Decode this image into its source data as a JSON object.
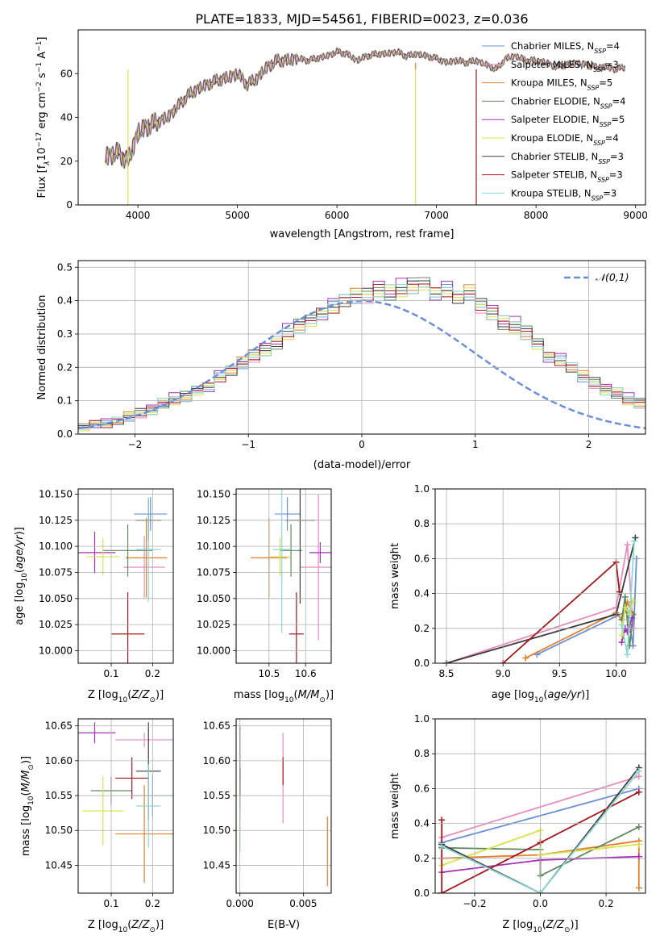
{
  "figure": {
    "title": "PLATE=1833, MJD=54561, FIBERID=0023, z=0.036"
  },
  "models": [
    {
      "name": "Chabrier MILES",
      "nssp": "4",
      "color": "#6a8fd8"
    },
    {
      "name": "Salpeter MILES",
      "nssp": "3",
      "color": "#e88bbf"
    },
    {
      "name": "Kroupa MILES",
      "nssp": "5",
      "color": "#e07f2c"
    },
    {
      "name": "Chabrier ELODIE",
      "nssp": "4",
      "color": "#5f8a5f"
    },
    {
      "name": "Salpeter ELODIE",
      "nssp": "5",
      "color": "#a52fb5"
    },
    {
      "name": "Kroupa ELODIE",
      "nssp": "4",
      "color": "#d7e34a"
    },
    {
      "name": "Chabrier STELIB",
      "nssp": "3",
      "color": "#3c3c3c"
    },
    {
      "name": "Salpeter STELIB",
      "nssp": "3",
      "color": "#a3181f"
    },
    {
      "name": "Kroupa STELIB",
      "nssp": "3",
      "color": "#8cd8d4"
    }
  ],
  "chart_data": [
    {
      "id": "spectrum",
      "type": "line",
      "xlabel": "wavelength [Angstrom, rest frame]",
      "ylabel": "Flux [f",
      "xlim": [
        3400,
        9100
      ],
      "ylim": [
        0,
        80
      ],
      "xticks": [
        4000,
        5000,
        6000,
        7000,
        8000,
        9000
      ],
      "yticks": [
        0,
        20,
        40,
        60
      ],
      "legend": "right",
      "x": [
        3670,
        3800,
        3900,
        4000,
        4100,
        4200,
        4300,
        4400,
        4500,
        4600,
        4700,
        4800,
        4900,
        5000,
        5100,
        5200,
        5300,
        5400,
        5500,
        5600,
        5700,
        5800,
        5900,
        6000,
        6100,
        6200,
        6300,
        6400,
        6500,
        6600,
        6700,
        6800,
        6900,
        7000,
        7100,
        7200,
        7300,
        7400,
        7500,
        7600,
        7700,
        7800,
        7900,
        8000,
        8100,
        8200,
        8300,
        8400,
        8500,
        8600,
        8700,
        8800,
        8900
      ],
      "y": [
        22,
        24,
        20,
        33,
        36,
        38,
        40,
        45,
        50,
        53,
        55,
        57,
        58,
        60,
        55,
        58,
        63,
        66,
        66,
        67,
        66,
        67,
        68,
        70,
        69,
        66,
        68,
        69,
        69,
        70,
        68,
        69,
        68,
        67,
        65,
        66,
        65,
        66,
        64,
        62,
        67,
        68,
        66,
        66,
        65,
        63,
        64,
        65,
        64,
        63,
        63,
        62,
        63
      ],
      "dips": [
        {
          "model": 5,
          "x": 3900,
          "y": 0
        },
        {
          "model": 5,
          "x": 6790,
          "y": 0
        },
        {
          "model": 2,
          "x": 6790,
          "y": 65
        },
        {
          "model": 7,
          "x": 7400,
          "y": 0
        }
      ]
    },
    {
      "id": "residuals",
      "type": "line",
      "xlabel": "(data-model)/error",
      "ylabel": "Normed distribution",
      "xlim": [
        -2.5,
        2.5
      ],
      "ylim": [
        0,
        0.52
      ],
      "xticks": [
        -2,
        -1,
        0,
        1,
        2
      ],
      "yticks": [
        0.0,
        0.1,
        0.2,
        0.3,
        0.4,
        0.5
      ],
      "legend": "top-right",
      "reference": {
        "name": "𝒩(0,1)",
        "color": "#6a8fd8",
        "mean": 0,
        "sigma": 1
      },
      "bin_width": 0.1,
      "bin_start": -2.5,
      "counts": [
        0.02,
        0.03,
        0.03,
        0.04,
        0.05,
        0.06,
        0.07,
        0.09,
        0.1,
        0.11,
        0.13,
        0.14,
        0.17,
        0.19,
        0.21,
        0.23,
        0.25,
        0.27,
        0.3,
        0.32,
        0.34,
        0.36,
        0.38,
        0.4,
        0.41,
        0.41,
        0.43,
        0.42,
        0.43,
        0.44,
        0.45,
        0.42,
        0.43,
        0.41,
        0.42,
        0.38,
        0.36,
        0.33,
        0.32,
        0.3,
        0.27,
        0.23,
        0.22,
        0.2,
        0.17,
        0.15,
        0.13,
        0.12,
        0.1,
        0.09,
        0.08,
        0.06,
        0.05,
        0.05,
        0.04,
        0.03,
        0.03,
        0.03,
        0.02,
        0.02
      ],
      "offsets": [
        [
          0.01,
          -0.01,
          0.02,
          0.0,
          -0.02,
          0.01,
          0.02,
          -0.01,
          0.0,
          0.02
        ],
        [
          0.0,
          0.01,
          -0.01,
          0.02,
          0.01,
          -0.02,
          0.0,
          0.03,
          -0.01,
          0.01
        ],
        [
          -0.01,
          0.02,
          0.0,
          -0.01,
          0.03,
          0.0,
          -0.02,
          0.01,
          0.02,
          -0.01
        ],
        [
          0.02,
          0.0,
          0.01,
          0.02,
          -0.01,
          0.02,
          0.01,
          -0.02,
          0.0,
          0.03
        ],
        [
          0.0,
          -0.02,
          0.03,
          0.01,
          0.0,
          -0.01,
          0.03,
          0.0,
          0.04,
          -0.02
        ],
        [
          -0.02,
          0.01,
          -0.01,
          0.0,
          0.02,
          0.01,
          -0.01,
          0.02,
          -0.02,
          0.0
        ],
        [
          0.01,
          0.0,
          0.0,
          -0.02,
          0.01,
          0.03,
          0.0,
          -0.01,
          0.01,
          0.02
        ],
        [
          0.0,
          0.02,
          -0.02,
          0.01,
          0.0,
          -0.01,
          0.02,
          0.01,
          -0.01,
          0.01
        ],
        [
          -0.01,
          -0.01,
          0.01,
          0.02,
          -0.01,
          0.0,
          -0.02,
          0.03,
          0.02,
          -0.02
        ]
      ]
    },
    {
      "id": "age-vs-Z",
      "type": "scatter",
      "xlabel": "Z [log",
      "ylabel": "age  [log",
      "xlim": [
        0.02,
        0.25
      ],
      "ylim": [
        9.988,
        10.155
      ],
      "xticks": [
        "0.1",
        "0.2"
      ],
      "xtick_values": [
        0.1,
        0.2
      ],
      "yticks": [
        "10.000",
        "10.025",
        "10.050",
        "10.075",
        "10.100",
        "10.125",
        "10.150"
      ],
      "ytick_values": [
        10.0,
        10.025,
        10.05,
        10.075,
        10.1,
        10.125,
        10.15
      ],
      "points": [
        {
          "model": 0,
          "x": 0.195,
          "xerr": 0.04,
          "y": 10.131,
          "yerr": 0.016
        },
        {
          "model": 1,
          "x": 0.18,
          "xerr": 0.05,
          "y": 10.08,
          "yerr": 0.03
        },
        {
          "model": 2,
          "x": 0.185,
          "xerr": 0.05,
          "y": 10.089,
          "yerr": 0.038
        },
        {
          "model": 3,
          "x": 0.14,
          "xerr": 0.06,
          "y": 10.096,
          "yerr": 0.025
        },
        {
          "model": 4,
          "x": 0.06,
          "xerr": 0.05,
          "y": 10.094,
          "yerr": 0.02
        },
        {
          "model": 5,
          "x": 0.08,
          "xerr": 0.04,
          "y": 10.09,
          "yerr": 0.018
        },
        {
          "model": 6,
          "x": 0.19,
          "xerr": 0.03,
          "y": 10.125,
          "yerr": 0.02
        },
        {
          "model": 7,
          "x": 0.14,
          "xerr": 0.04,
          "y": 10.016,
          "yerr": 0.04
        },
        {
          "model": 8,
          "x": 0.19,
          "xerr": 0.03,
          "y": 10.097,
          "yerr": 0.05
        }
      ]
    },
    {
      "id": "age-vs-mass",
      "type": "scatter",
      "xlabel": "mass [log",
      "ylabel": "",
      "xlim": [
        10.41,
        10.67
      ],
      "ylim": [
        9.988,
        10.155
      ],
      "xticks": [
        "10.5",
        "10.6"
      ],
      "xtick_values": [
        10.5,
        10.6
      ],
      "yticks": [
        "10.000",
        "10.025",
        "10.050",
        "10.075",
        "10.100",
        "10.125",
        "10.150"
      ],
      "ytick_values": [
        10.0,
        10.025,
        10.05,
        10.075,
        10.1,
        10.125,
        10.15
      ],
      "points": [
        {
          "model": 0,
          "x": 10.55,
          "xerr": 0.035,
          "y": 10.131,
          "yerr": 0.016
        },
        {
          "model": 1,
          "x": 10.635,
          "xerr": 0.05,
          "y": 10.08,
          "yerr": 0.07
        },
        {
          "model": 2,
          "x": 10.5,
          "xerr": 0.05,
          "y": 10.089,
          "yerr": 0.038
        },
        {
          "model": 3,
          "x": 10.56,
          "xerr": 0.03,
          "y": 10.096,
          "yerr": 0.025
        },
        {
          "model": 4,
          "x": 10.64,
          "xerr": 0.03,
          "y": 10.094,
          "yerr": 0.01
        },
        {
          "model": 5,
          "x": 10.53,
          "xerr": 0.03,
          "y": 10.09,
          "yerr": 0.018
        },
        {
          "model": 6,
          "x": 10.585,
          "xerr": 0.04,
          "y": 10.125,
          "yerr": 0.08
        },
        {
          "model": 7,
          "x": 10.575,
          "xerr": 0.02,
          "y": 10.016,
          "yerr": 0.04
        },
        {
          "model": 8,
          "x": 10.535,
          "xerr": 0.025,
          "y": 10.097,
          "yerr": 0.08
        }
      ]
    },
    {
      "id": "mass-weight-vs-age",
      "type": "line",
      "xlabel": "age  [log",
      "ylabel": "mass weight",
      "xlim": [
        8.4,
        10.26
      ],
      "ylim": [
        0,
        1
      ],
      "xticks": [
        "8.5",
        "9.0",
        "9.5",
        "10.0"
      ],
      "xtick_values": [
        8.5,
        9.0,
        9.5,
        10.0
      ],
      "yticks": [
        "0.0",
        "0.2",
        "0.4",
        "0.6",
        "0.8",
        "1.0"
      ],
      "ytick_values": [
        0,
        0.2,
        0.4,
        0.6,
        0.8,
        1.0
      ],
      "series": [
        {
          "model": 0,
          "x": [
            9.3,
            10.1,
            10.15,
            10.18
          ],
          "y": [
            0.05,
            0.3,
            0.1,
            0.6
          ]
        },
        {
          "model": 1,
          "x": [
            8.5,
            10.0,
            10.1,
            10.15
          ],
          "y": [
            0.0,
            0.32,
            0.68,
            0.2
          ]
        },
        {
          "model": 2,
          "x": [
            9.2,
            10.0,
            10.05,
            10.1,
            10.15
          ],
          "y": [
            0.03,
            0.29,
            0.25,
            0.35,
            0.28
          ]
        },
        {
          "model": 3,
          "x": [
            10.05,
            10.08,
            10.12,
            10.15
          ],
          "y": [
            0.25,
            0.38,
            0.1,
            0.28
          ]
        },
        {
          "model": 4,
          "x": [
            10.05,
            10.08,
            10.1,
            10.12,
            10.14
          ],
          "y": [
            0.12,
            0.2,
            0.18,
            0.22,
            0.26
          ]
        },
        {
          "model": 5,
          "x": [
            10.05,
            10.08,
            10.12,
            10.15
          ],
          "y": [
            0.16,
            0.32,
            0.28,
            0.36
          ]
        },
        {
          "model": 6,
          "x": [
            8.5,
            10.0,
            10.17
          ],
          "y": [
            0.0,
            0.28,
            0.72
          ]
        },
        {
          "model": 7,
          "x": [
            9.0,
            10.0,
            10.03
          ],
          "y": [
            0.0,
            0.58,
            0.41
          ]
        },
        {
          "model": 8,
          "x": [
            10.05,
            10.1,
            10.16
          ],
          "y": [
            0.22,
            0.05,
            0.7
          ]
        }
      ]
    },
    {
      "id": "mass-vs-Z",
      "type": "scatter",
      "xlabel": "Z [log",
      "ylabel": "mass [log",
      "xlim": [
        0.02,
        0.25
      ],
      "ylim": [
        10.41,
        10.66
      ],
      "xticks": [
        "0.1",
        "0.2"
      ],
      "xtick_values": [
        0.1,
        0.2
      ],
      "yticks": [
        "10.45",
        "10.50",
        "10.55",
        "10.60",
        "10.65"
      ],
      "ytick_values": [
        10.45,
        10.5,
        10.55,
        10.6,
        10.65
      ],
      "points": [
        {
          "model": 0,
          "x": 0.2,
          "xerr": 0.05,
          "y": 10.55,
          "yerr": 0.03
        },
        {
          "model": 1,
          "x": 0.18,
          "xerr": 0.07,
          "y": 10.63,
          "yerr": 0.01
        },
        {
          "model": 2,
          "x": 0.18,
          "xerr": 0.07,
          "y": 10.495,
          "yerr": 0.07
        },
        {
          "model": 3,
          "x": 0.1,
          "xerr": 0.05,
          "y": 10.557,
          "yerr": 0.02
        },
        {
          "model": 4,
          "x": 0.06,
          "xerr": 0.05,
          "y": 10.64,
          "yerr": 0.015
        },
        {
          "model": 5,
          "x": 0.08,
          "xerr": 0.05,
          "y": 10.528,
          "yerr": 0.05
        },
        {
          "model": 6,
          "x": 0.19,
          "xerr": 0.03,
          "y": 10.585,
          "yerr": 0.07
        },
        {
          "model": 7,
          "x": 0.15,
          "xerr": 0.04,
          "y": 10.575,
          "yerr": 0.03
        },
        {
          "model": 8,
          "x": 0.19,
          "xerr": 0.03,
          "y": 10.535,
          "yerr": 0.06
        }
      ]
    },
    {
      "id": "mass-vs-EBV",
      "type": "scatter",
      "xlabel": "E(B-V)",
      "ylabel": "",
      "xlim": [
        -0.0003,
        0.0072
      ],
      "ylim": [
        10.41,
        10.66
      ],
      "xticks": [
        "0.000",
        "0.005"
      ],
      "xtick_values": [
        0.0,
        0.005
      ],
      "yticks": [
        "10.45",
        "10.50",
        "10.55",
        "10.60",
        "10.65"
      ],
      "ytick_values": [
        10.45,
        10.5,
        10.55,
        10.6,
        10.65
      ],
      "points": [
        {
          "model": 0,
          "x": 0.0,
          "xerr": 0,
          "y": 10.55,
          "yerr": 0.03
        },
        {
          "model": 1,
          "x": 0.0034,
          "xerr": 0,
          "y": 10.575,
          "yerr": 0.065
        },
        {
          "model": 2,
          "x": 0.0069,
          "xerr": 0,
          "y": 10.47,
          "yerr": 0.05
        },
        {
          "model": 3,
          "x": 0.0,
          "xerr": 0,
          "y": 10.56,
          "yerr": 0.03
        },
        {
          "model": 4,
          "x": 0.0,
          "xerr": 0,
          "y": 10.6,
          "yerr": 0.05
        },
        {
          "model": 5,
          "x": 0.0,
          "xerr": 0,
          "y": 10.52,
          "yerr": 0.05
        },
        {
          "model": 6,
          "x": 0.0,
          "xerr": 0,
          "y": 10.56,
          "yerr": 0.03
        },
        {
          "model": 7,
          "x": 0.0034,
          "xerr": 0,
          "y": 10.585,
          "yerr": 0.02
        },
        {
          "model": 8,
          "x": 0.0,
          "xerr": 0,
          "y": 10.51,
          "yerr": 0.04
        }
      ]
    },
    {
      "id": "mass-weight-vs-Z",
      "type": "line",
      "xlabel": "Z [log",
      "ylabel": "mass weight",
      "xlim": [
        -0.32,
        0.32
      ],
      "ylim": [
        0,
        1
      ],
      "xticks": [
        "−0.2",
        "0.0",
        "0.2"
      ],
      "xtick_values": [
        -0.2,
        0.0,
        0.2
      ],
      "yticks": [
        "0.0",
        "0.2",
        "0.4",
        "0.6",
        "0.8",
        "1.0"
      ],
      "ytick_values": [
        0,
        0.2,
        0.4,
        0.6,
        0.8,
        1.0
      ],
      "series": [
        {
          "model": 0,
          "x": [
            -0.3,
            0.3
          ],
          "y": [
            0.29,
            0.6
          ]
        },
        {
          "model": 1,
          "x": [
            -0.3,
            0.3
          ],
          "y": [
            0.32,
            0.67
          ]
        },
        {
          "model": 2,
          "x": [
            -0.3,
            0.0,
            0.3,
            0.3
          ],
          "y": [
            0.2,
            0.22,
            0.3,
            0.03
          ]
        },
        {
          "model": 3,
          "x": [
            -0.3,
            0.0,
            0.0,
            0.3
          ],
          "y": [
            0.26,
            0.25,
            0.1,
            0.38
          ]
        },
        {
          "model": 4,
          "x": [
            -0.3,
            0.0,
            0.3
          ],
          "y": [
            0.12,
            0.19,
            0.21
          ]
        },
        {
          "model": 5,
          "x": [
            -0.3,
            0.0,
            0.0,
            0.3
          ],
          "y": [
            0.16,
            0.36,
            0.22,
            0.28
          ]
        },
        {
          "model": 6,
          "x": [
            -0.3,
            0.0,
            0.3
          ],
          "y": [
            0.28,
            0.0,
            0.72
          ]
        },
        {
          "model": 7,
          "x": [
            -0.3,
            -0.3,
            0.0,
            0.3
          ],
          "y": [
            0.42,
            0.0,
            0.29,
            0.58
          ]
        },
        {
          "model": 8,
          "x": [
            -0.3,
            0.0,
            0.3
          ],
          "y": [
            0.27,
            0.0,
            0.7
          ]
        }
      ]
    }
  ]
}
